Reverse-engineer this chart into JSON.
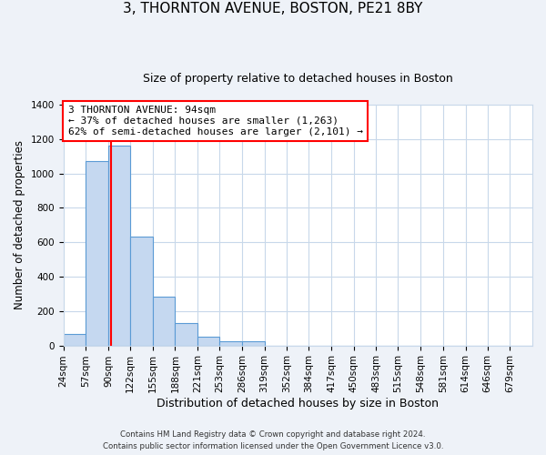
{
  "title": "3, THORNTON AVENUE, BOSTON, PE21 8BY",
  "subtitle": "Size of property relative to detached houses in Boston",
  "xlabel": "Distribution of detached houses by size in Boston",
  "ylabel": "Number of detached properties",
  "bin_labels": [
    "24sqm",
    "57sqm",
    "90sqm",
    "122sqm",
    "155sqm",
    "188sqm",
    "221sqm",
    "253sqm",
    "286sqm",
    "319sqm",
    "352sqm",
    "384sqm",
    "417sqm",
    "450sqm",
    "483sqm",
    "515sqm",
    "548sqm",
    "581sqm",
    "614sqm",
    "646sqm",
    "679sqm"
  ],
  "bin_edges": [
    24,
    57,
    90,
    122,
    155,
    188,
    221,
    253,
    286,
    319,
    352,
    384,
    417,
    450,
    483,
    515,
    548,
    581,
    614,
    646,
    679,
    712
  ],
  "bar_heights": [
    65,
    1070,
    1160,
    635,
    285,
    130,
    50,
    25,
    25,
    0,
    0,
    0,
    0,
    0,
    0,
    0,
    0,
    0,
    0,
    0,
    0
  ],
  "bar_color": "#c5d8f0",
  "bar_edge_color": "#5b9bd5",
  "red_line_x": 94,
  "ylim": [
    0,
    1400
  ],
  "yticks": [
    0,
    200,
    400,
    600,
    800,
    1000,
    1200,
    1400
  ],
  "annotation_line1": "3 THORNTON AVENUE: 94sqm",
  "annotation_line2": "← 37% of detached houses are smaller (1,263)",
  "annotation_line3": "62% of semi-detached houses are larger (2,101) →",
  "footnote1": "Contains HM Land Registry data © Crown copyright and database right 2024.",
  "footnote2": "Contains public sector information licensed under the Open Government Licence v3.0.",
  "background_color": "#eef2f8",
  "plot_bg_color": "#ffffff",
  "grid_color": "#c8d8ea",
  "title_fontsize": 11,
  "subtitle_fontsize": 9,
  "xlabel_fontsize": 9,
  "ylabel_fontsize": 8.5,
  "tick_fontsize": 7.5,
  "footnote_fontsize": 6.2
}
